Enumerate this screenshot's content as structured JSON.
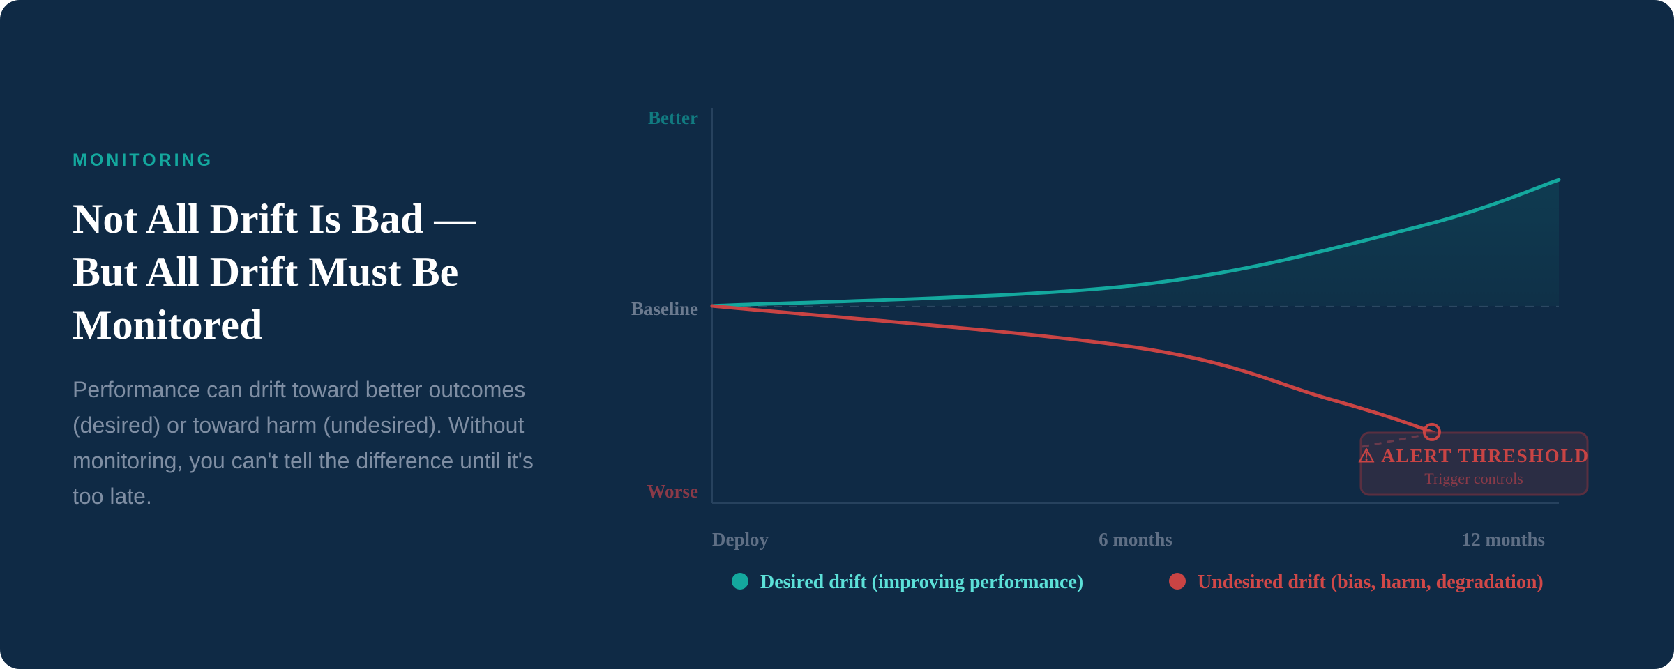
{
  "eyebrow": "MONITORING",
  "title": "Not All Drift Is Bad — But All Drift Must Be Monitored",
  "body": "Performance can drift toward better outcomes (desired) or toward harm (undesired). Without monitoring, you can't tell the difference until it's too late.",
  "colors": {
    "background": "#0f2a45",
    "desired": "#14a89e",
    "undesired": "#c94444",
    "desired_text": "#5ce0d8"
  },
  "chart_data": {
    "type": "line",
    "y_tick_labels": {
      "better": "Better",
      "baseline": "Baseline",
      "worse": "Worse"
    },
    "x_tick_labels": [
      "Deploy",
      "6 months",
      "12 months"
    ],
    "xlim": [
      0,
      12
    ],
    "ylim": [
      -1,
      1
    ],
    "baseline": 0,
    "series": [
      {
        "name": "Desired drift (improving performance)",
        "color": "#14a89e",
        "x": [
          0,
          6,
          10,
          12
        ],
        "y": [
          0,
          0.11,
          0.42,
          0.67
        ]
      },
      {
        "name": "Undesired drift (bias, harm, degradation)",
        "color": "#c94444",
        "x": [
          0,
          6,
          8.7,
          10.2,
          11.2
        ],
        "y": [
          0,
          -0.22,
          -0.49,
          -0.67,
          -0.85
        ]
      }
    ],
    "annotation": {
      "title": "⚠ ALERT THRESHOLD",
      "subtitle": "Trigger controls",
      "x": 10.2,
      "y": -0.67
    },
    "legend": "bottom"
  }
}
